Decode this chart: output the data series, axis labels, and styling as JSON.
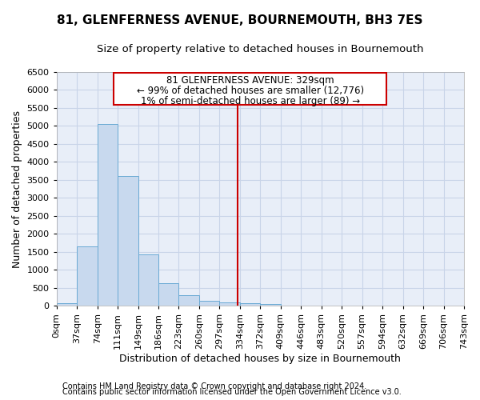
{
  "title": "81, GLENFERNESS AVENUE, BOURNEMOUTH, BH3 7ES",
  "subtitle": "Size of property relative to detached houses in Bournemouth",
  "xlabel": "Distribution of detached houses by size in Bournemouth",
  "ylabel": "Number of detached properties",
  "footer_line1": "Contains HM Land Registry data © Crown copyright and database right 2024.",
  "footer_line2": "Contains public sector information licensed under the Open Government Licence v3.0.",
  "bin_labels": [
    "0sqm",
    "37sqm",
    "74sqm",
    "111sqm",
    "149sqm",
    "186sqm",
    "223sqm",
    "260sqm",
    "297sqm",
    "334sqm",
    "372sqm",
    "409sqm",
    "446sqm",
    "483sqm",
    "520sqm",
    "557sqm",
    "594sqm",
    "632sqm",
    "669sqm",
    "706sqm",
    "743sqm"
  ],
  "bar_heights": [
    75,
    1650,
    5050,
    3600,
    1420,
    620,
    290,
    150,
    100,
    80,
    60,
    0,
    0,
    0,
    0,
    0,
    0,
    0,
    0,
    0
  ],
  "bar_color": "#c8d9ee",
  "bar_edge_color": "#6aaad4",
  "grid_color": "#c8d4e8",
  "background_color": "#e8eef8",
  "vline_x_index": 8.89,
  "annotation_line1": "81 GLENFERNESS AVENUE: 329sqm",
  "annotation_line2": "← 99% of detached houses are smaller (12,776)",
  "annotation_line3": "1% of semi-detached houses are larger (89) →",
  "annotation_box_color": "#ffffff",
  "annotation_box_edge": "#cc0000",
  "vline_color": "#cc0000",
  "ylim": [
    0,
    6500
  ],
  "yticks": [
    0,
    500,
    1000,
    1500,
    2000,
    2500,
    3000,
    3500,
    4000,
    4500,
    5000,
    5500,
    6000,
    6500
  ],
  "title_fontsize": 11,
  "subtitle_fontsize": 9.5,
  "axis_label_fontsize": 9,
  "tick_fontsize": 8,
  "annotation_fontsize": 8.5,
  "footer_fontsize": 7
}
